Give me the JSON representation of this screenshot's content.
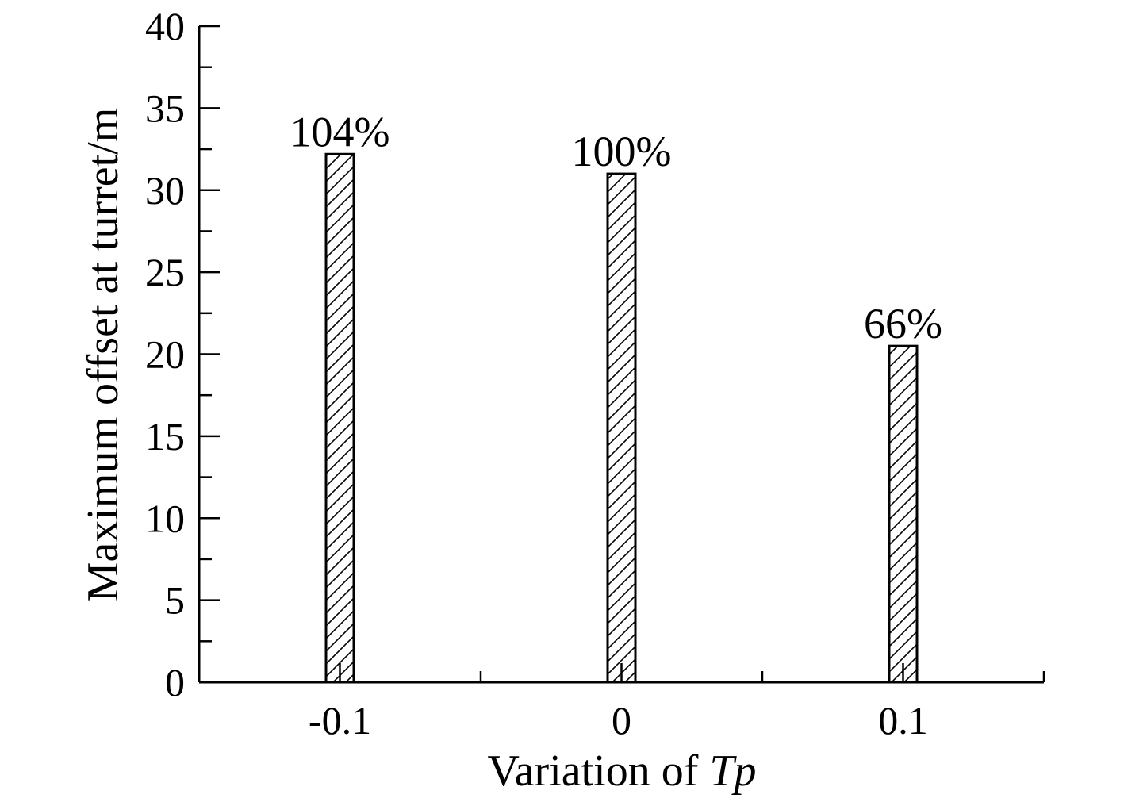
{
  "chart_data": {
    "type": "bar",
    "categories": [
      "-0.1",
      "0",
      "0.1"
    ],
    "values": [
      32.2,
      31.0,
      20.5
    ],
    "data_labels": [
      "104%",
      "100%",
      "66%"
    ],
    "title": "",
    "xlabel": {
      "prefix": "Variation of ",
      "symbol": "Tp"
    },
    "ylabel": "Maximum offset at turret/m",
    "ylim": [
      0,
      40
    ],
    "yticks": [
      "0",
      "5",
      "10",
      "15",
      "20",
      "25",
      "30",
      "35",
      "40"
    ],
    "grid": false,
    "legend": "none",
    "bar_pattern": "diagonal-hatch",
    "bar_color": "#000000"
  }
}
